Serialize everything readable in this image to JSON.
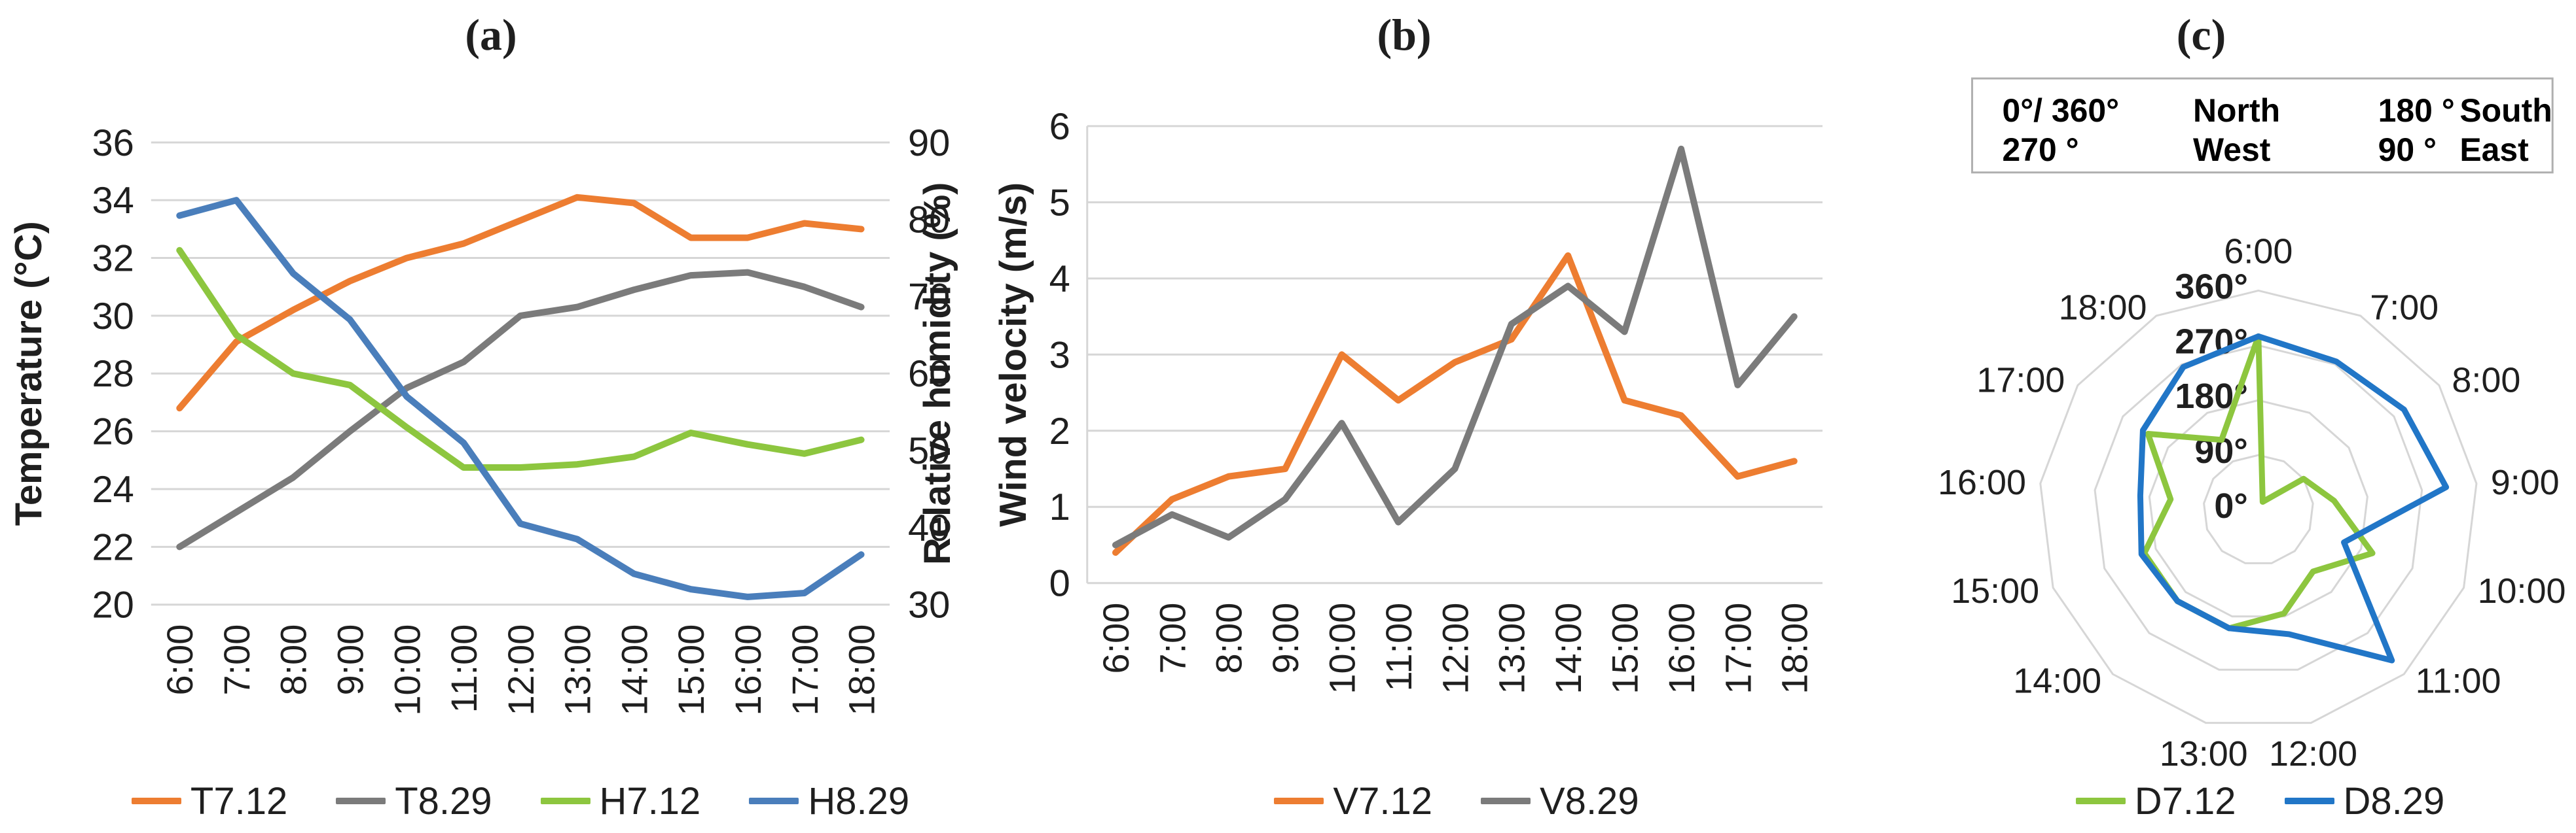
{
  "colors": {
    "orange": "#ED7D31",
    "gray": "#7B7B7B",
    "green": "#8DC63F",
    "blue_humidity": "#4A7EBB",
    "blue_direction": "#2176C7",
    "grid": "#D6D6D6",
    "text": "#1F1F1F",
    "box_border": "#AFAFAF"
  },
  "panels": {
    "a": {
      "title": "(a)",
      "y_left_title": "Temperature (°C)",
      "y_right_title": "Relative humidity (%)",
      "legend": [
        "T7.12",
        "T8.29",
        "H7.12",
        "H8.29"
      ]
    },
    "b": {
      "title": "(b)",
      "y_left_title": "Wind velocity (m/s)",
      "legend": [
        "V7.12",
        "V8.29"
      ]
    },
    "c": {
      "title": "(c)",
      "direction_key": [
        [
          "0°/ 360°",
          "North",
          "180 °",
          "South"
        ],
        [
          "270 °",
          "West",
          "90 °",
          "East"
        ]
      ],
      "legend": [
        "D7.12",
        "D8.29"
      ]
    }
  },
  "chart_data": [
    {
      "id": "a",
      "type": "line",
      "title": "(a)",
      "categories": [
        "6:00",
        "7:00",
        "8:00",
        "9:00",
        "10:00",
        "11:00",
        "12:00",
        "13:00",
        "14:00",
        "15:00",
        "16:00",
        "17:00",
        "18:00"
      ],
      "grid": true,
      "legend_position": "bottom",
      "y_left": {
        "min": 20,
        "max": 36,
        "step": 2,
        "label": "Temperature (°C)",
        "ticks": [
          "36",
          "34",
          "32",
          "30",
          "28",
          "26",
          "24",
          "22",
          "20"
        ]
      },
      "y_right": {
        "min": 30,
        "max": 90,
        "step": 10,
        "label": "Relative humidity (%)",
        "ticks": [
          "90",
          "80",
          "70",
          "60",
          "50",
          "40",
          "30"
        ]
      },
      "series": [
        {
          "name": "T7.12",
          "axis": "left",
          "color": "#ED7D31",
          "values": [
            26.8,
            29.1,
            30.2,
            31.2,
            32.0,
            32.5,
            33.3,
            34.1,
            33.9,
            32.7,
            32.7,
            33.2,
            33.0
          ]
        },
        {
          "name": "T8.29",
          "axis": "left",
          "color": "#7B7B7B",
          "values": [
            22.0,
            23.2,
            24.4,
            26.0,
            27.5,
            28.4,
            30.0,
            30.3,
            30.9,
            31.4,
            31.5,
            31.0,
            30.3
          ]
        },
        {
          "name": "H7.12",
          "axis": "right",
          "color": "#8DC63F",
          "values": [
            76,
            65,
            60,
            58.5,
            53,
            47.8,
            47.8,
            48.2,
            49.2,
            52.3,
            50.8,
            49.6,
            51.4
          ]
        },
        {
          "name": "H8.29",
          "axis": "right",
          "color": "#4A7EBB",
          "values": [
            80.5,
            82.5,
            73,
            67,
            57,
            51,
            40.5,
            38.5,
            34,
            32,
            31,
            31.5,
            36.5
          ]
        }
      ]
    },
    {
      "id": "b",
      "type": "line",
      "title": "(b)",
      "categories": [
        "6:00",
        "7:00",
        "8:00",
        "9:00",
        "10:00",
        "11:00",
        "12:00",
        "13:00",
        "14:00",
        "15:00",
        "16:00",
        "17:00",
        "18:00"
      ],
      "grid": true,
      "legend_position": "bottom",
      "y_left": {
        "min": 0,
        "max": 6,
        "step": 1,
        "label": "Wind velocity (m/s)",
        "ticks": [
          "6",
          "5",
          "4",
          "3",
          "2",
          "1",
          "0"
        ]
      },
      "series": [
        {
          "name": "V7.12",
          "axis": "left",
          "color": "#ED7D31",
          "values": [
            0.4,
            1.1,
            1.4,
            1.5,
            3.0,
            2.4,
            2.9,
            3.2,
            4.3,
            2.4,
            2.2,
            1.4,
            1.6
          ]
        },
        {
          "name": "V8.29",
          "axis": "left",
          "color": "#7B7B7B",
          "values": [
            0.5,
            0.9,
            0.6,
            1.1,
            2.1,
            0.8,
            1.5,
            3.4,
            3.9,
            3.3,
            5.7,
            2.6,
            3.5
          ]
        }
      ]
    },
    {
      "id": "c",
      "type": "radar",
      "title": "(c)",
      "categories": [
        "6:00",
        "7:00",
        "8:00",
        "9:00",
        "10:00",
        "11:00",
        "12:00",
        "13:00",
        "14:00",
        "15:00",
        "16:00",
        "17:00",
        "18:00"
      ],
      "axis": {
        "min": 0,
        "max": 360,
        "step": 90,
        "ring_labels": [
          "0°",
          "90°",
          "180°",
          "270°",
          "360°"
        ]
      },
      "direction_key": [
        [
          "0°/ 360°",
          "North",
          "180 °",
          "South"
        ],
        [
          "270 °",
          "West",
          "90 °",
          "East"
        ]
      ],
      "series": [
        {
          "name": "D7.12",
          "color": "#8DC63F",
          "values": [
            285,
            15,
            90,
            125,
            200,
            135,
            175,
            200,
            200,
            200,
            145,
            220,
            130
          ]
        },
        {
          "name": "D8.29",
          "color": "#2176C7",
          "values": [
            285,
            275,
            290,
            310,
            150,
            330,
            210,
            200,
            200,
            205,
            195,
            230,
            265
          ]
        }
      ]
    }
  ]
}
